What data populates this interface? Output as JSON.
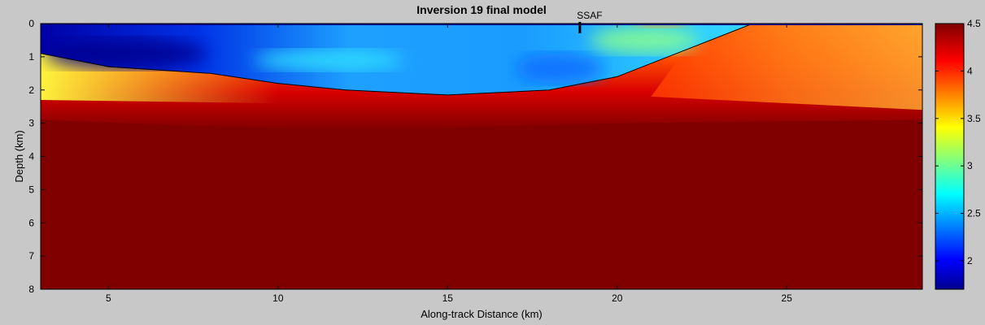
{
  "chart_data": {
    "type": "heatmap",
    "title": "Inversion 19 final model",
    "xlabel": "Along-track Distance (km)",
    "ylabel": "Depth (km)",
    "xlim": [
      3,
      29
    ],
    "ylim": [
      0,
      8
    ],
    "y_reversed": true,
    "x_ticks": [
      5,
      10,
      15,
      20,
      25
    ],
    "y_ticks": [
      0,
      1,
      2,
      3,
      4,
      5,
      6,
      7,
      8
    ],
    "colorbar": {
      "range": [
        1.7,
        4.5
      ],
      "ticks": [
        2,
        2.5,
        3,
        3.5,
        4,
        4.5
      ],
      "colormap": "jet"
    },
    "annotation": {
      "text": "SSAF",
      "x": 18.9,
      "depth": 0
    },
    "basin_boundary": {
      "x": [
        3,
        5,
        8,
        10,
        12,
        15,
        18,
        20,
        22,
        24
      ],
      "depth": [
        0.9,
        1.3,
        1.5,
        1.8,
        2.0,
        2.15,
        2.0,
        1.6,
        0.8,
        0
      ]
    },
    "grid": false
  }
}
